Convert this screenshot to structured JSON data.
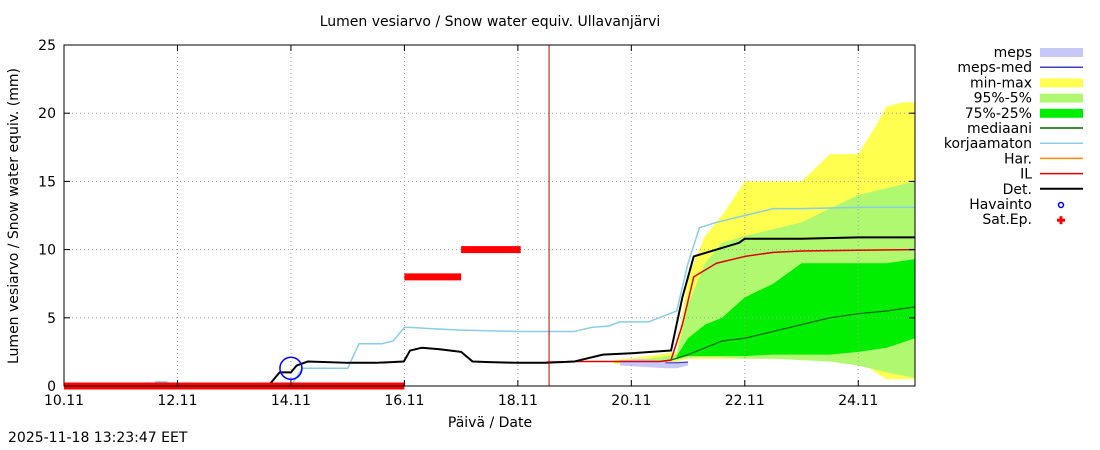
{
  "chart_data": {
    "type": "line",
    "title": "Lumen vesiarvo / Snow water equiv.  Ullavanjärvi",
    "xlabel": "Päivä / Date",
    "ylabel": "Lumen vesiarvo / Snow water equiv. (mm)",
    "xlim": [
      0,
      15
    ],
    "ylim": [
      0,
      25
    ],
    "yticks": [
      0,
      5,
      10,
      15,
      20,
      25
    ],
    "xticks": [
      {
        "x": 0,
        "label": "10.11"
      },
      {
        "x": 2,
        "label": "12.11"
      },
      {
        "x": 4,
        "label": "14.11"
      },
      {
        "x": 6,
        "label": "16.11"
      },
      {
        "x": 8,
        "label": "18.11"
      },
      {
        "x": 10,
        "label": "20.11"
      },
      {
        "x": 12,
        "label": "22.11"
      },
      {
        "x": 14,
        "label": "24.11"
      }
    ],
    "grid": true,
    "now_line_x": 8.55,
    "legend_position": "outside-right",
    "colors": {
      "meps": "#c8c8f8",
      "meps_med": "#4040c0",
      "minmax": "#ffff50",
      "p95_5": "#b0f870",
      "p75_25": "#00ee00",
      "mediaani": "#006400",
      "korjaamaton": "#87cee6",
      "har": "#ff8c00",
      "il": "#e00000",
      "det": "#000000",
      "havainto": "#0000ff",
      "satep": "#ff0000",
      "nowline": "#cc0000",
      "grid": "#a0a0a0"
    },
    "series": [
      {
        "key": "minmax",
        "name": "min-max",
        "x": [
          9.7,
          10.3,
          10.8,
          11.0,
          11.3,
          11.6,
          12.0,
          13.0,
          13.5,
          14.0,
          14.3,
          14.5,
          14.8,
          15.0
        ],
        "lower": [
          1.6,
          1.6,
          1.8,
          2.0,
          2.0,
          2.0,
          2.0,
          2.0,
          2.0,
          2.0,
          1.0,
          0.5,
          0.5,
          0.5
        ],
        "upper": [
          1.9,
          2.2,
          2.5,
          8.0,
          11.0,
          12.5,
          15.0,
          15.0,
          17.0,
          17.0,
          19.0,
          20.5,
          20.8,
          20.8
        ]
      },
      {
        "key": "p95_5",
        "name": "95%-5%",
        "x": [
          9.7,
          10.3,
          10.8,
          11.0,
          11.3,
          11.6,
          12.0,
          12.5,
          13.0,
          13.5,
          14.0,
          14.5,
          15.0
        ],
        "lower": [
          1.7,
          1.7,
          1.9,
          2.1,
          2.1,
          2.1,
          2.0,
          2.0,
          1.9,
          1.8,
          1.5,
          1.0,
          0.6
        ],
        "upper": [
          1.85,
          2.0,
          2.3,
          6.0,
          9.0,
          10.5,
          11.0,
          11.5,
          12.0,
          13.0,
          14.0,
          14.5,
          15.0
        ]
      },
      {
        "key": "p75_25",
        "name": "75%-25%",
        "x": [
          10.8,
          11.0,
          11.3,
          11.6,
          12.0,
          12.5,
          13.0,
          13.5,
          14.0,
          14.5,
          15.0
        ],
        "lower": [
          2.0,
          2.2,
          2.2,
          2.2,
          2.2,
          2.3,
          2.3,
          2.3,
          2.5,
          2.8,
          3.5
        ],
        "upper": [
          2.2,
          3.5,
          4.5,
          5.0,
          6.5,
          7.5,
          9.0,
          9.0,
          9.0,
          9.0,
          9.3
        ]
      },
      {
        "key": "meps",
        "name": "meps",
        "x": [
          9.8,
          10.2,
          10.6,
          10.8,
          11.0
        ],
        "lower": [
          1.5,
          1.4,
          1.3,
          1.3,
          1.5
        ],
        "upper": [
          1.9,
          2.0,
          1.8,
          1.8,
          1.8
        ]
      },
      {
        "key": "korjaamaton",
        "name": "korjaamaton",
        "x": [
          1.6,
          1.8,
          2.0,
          4.0,
          4.2,
          4.5,
          5.0,
          5.2,
          5.6,
          5.8,
          6.0,
          6.1,
          6.5,
          7.0,
          8.0,
          9.0,
          9.3,
          9.6,
          9.8,
          10.3,
          10.8,
          11.0,
          11.2,
          11.5,
          12.0,
          12.5,
          13.0,
          14.0,
          15.0
        ],
        "y": [
          0.3,
          0.3,
          0.0,
          0.0,
          1.3,
          1.3,
          1.3,
          3.1,
          3.1,
          3.3,
          4.3,
          4.3,
          4.2,
          4.1,
          4.0,
          4.0,
          4.3,
          4.4,
          4.7,
          4.7,
          5.5,
          9.0,
          11.6,
          12.0,
          12.5,
          13.0,
          13.0,
          13.1,
          13.1
        ]
      },
      {
        "key": "det",
        "name": "Det.",
        "x": [
          0,
          3.6,
          3.8,
          4.0,
          4.1,
          4.3,
          5.0,
          5.5,
          5.99,
          6.1,
          6.3,
          6.6,
          7.0,
          7.2,
          7.5,
          8.0,
          8.5,
          9.0,
          9.5,
          10.0,
          10.7,
          10.9,
          11.1,
          11.5,
          11.9,
          12.0,
          13.0,
          14.0,
          15.0
        ],
        "y": [
          0.0,
          0.0,
          1.0,
          1.0,
          1.5,
          1.8,
          1.7,
          1.7,
          1.8,
          2.6,
          2.8,
          2.7,
          2.5,
          1.8,
          1.75,
          1.7,
          1.7,
          1.8,
          2.3,
          2.4,
          2.6,
          6.5,
          9.5,
          10.0,
          10.5,
          10.8,
          10.8,
          10.9,
          10.9
        ]
      },
      {
        "key": "il",
        "name": "IL",
        "x": [
          8.5,
          9.0,
          9.5,
          10.0,
          10.5,
          10.7,
          10.9,
          11.1,
          11.5,
          12.0,
          12.5,
          13.0,
          14.0,
          15.0
        ],
        "y": [
          1.75,
          1.8,
          1.8,
          1.8,
          1.8,
          1.9,
          4.5,
          8.0,
          9.0,
          9.5,
          9.8,
          9.9,
          9.95,
          10.0
        ]
      },
      {
        "key": "mediaani",
        "name": "mediaani",
        "x": [
          10.5,
          10.7,
          11.0,
          11.3,
          11.6,
          12.0,
          12.5,
          13.0,
          13.5,
          14.0,
          14.5,
          15.0
        ],
        "y": [
          1.8,
          1.9,
          2.3,
          2.8,
          3.3,
          3.5,
          4.0,
          4.5,
          5.0,
          5.3,
          5.5,
          5.8
        ]
      },
      {
        "key": "meps_med",
        "name": "meps-med",
        "x": [
          10.6,
          10.8,
          11.0
        ],
        "y": [
          1.7,
          1.7,
          1.75
        ]
      },
      {
        "key": "har",
        "name": "Har.",
        "x": [],
        "y": []
      }
    ],
    "havainto": {
      "name": "Havainto",
      "x": 4.0,
      "y": 1.3
    },
    "satep": {
      "name": "Sat.Ep.",
      "segments": [
        {
          "x0": 0.0,
          "x1": 6.0,
          "y": 0.0
        },
        {
          "x0": 6.0,
          "x1": 7.0,
          "y": 8.0
        },
        {
          "x0": 7.0,
          "x1": 8.05,
          "y": 10.0
        }
      ]
    },
    "legend": [
      {
        "key": "meps",
        "label": "meps",
        "style": "fill"
      },
      {
        "key": "meps_med",
        "label": "meps-med",
        "style": "line"
      },
      {
        "key": "minmax",
        "label": "min-max",
        "style": "fill"
      },
      {
        "key": "p95_5",
        "label": "95%-5%",
        "style": "fill"
      },
      {
        "key": "p75_25",
        "label": "75%-25%",
        "style": "fill"
      },
      {
        "key": "mediaani",
        "label": "mediaani",
        "style": "line"
      },
      {
        "key": "korjaamaton",
        "label": "korjaamaton",
        "style": "line"
      },
      {
        "key": "har",
        "label": "Har.",
        "style": "line"
      },
      {
        "key": "il",
        "label": "IL",
        "style": "line"
      },
      {
        "key": "det",
        "label": "Det.",
        "style": "line"
      },
      {
        "key": "havainto",
        "label": "Havainto",
        "style": "circle"
      },
      {
        "key": "satep",
        "label": "Sat.Ep.",
        "style": "plus"
      }
    ]
  },
  "footer": {
    "timestamp": "2025-11-18 13:23:47 EET"
  }
}
